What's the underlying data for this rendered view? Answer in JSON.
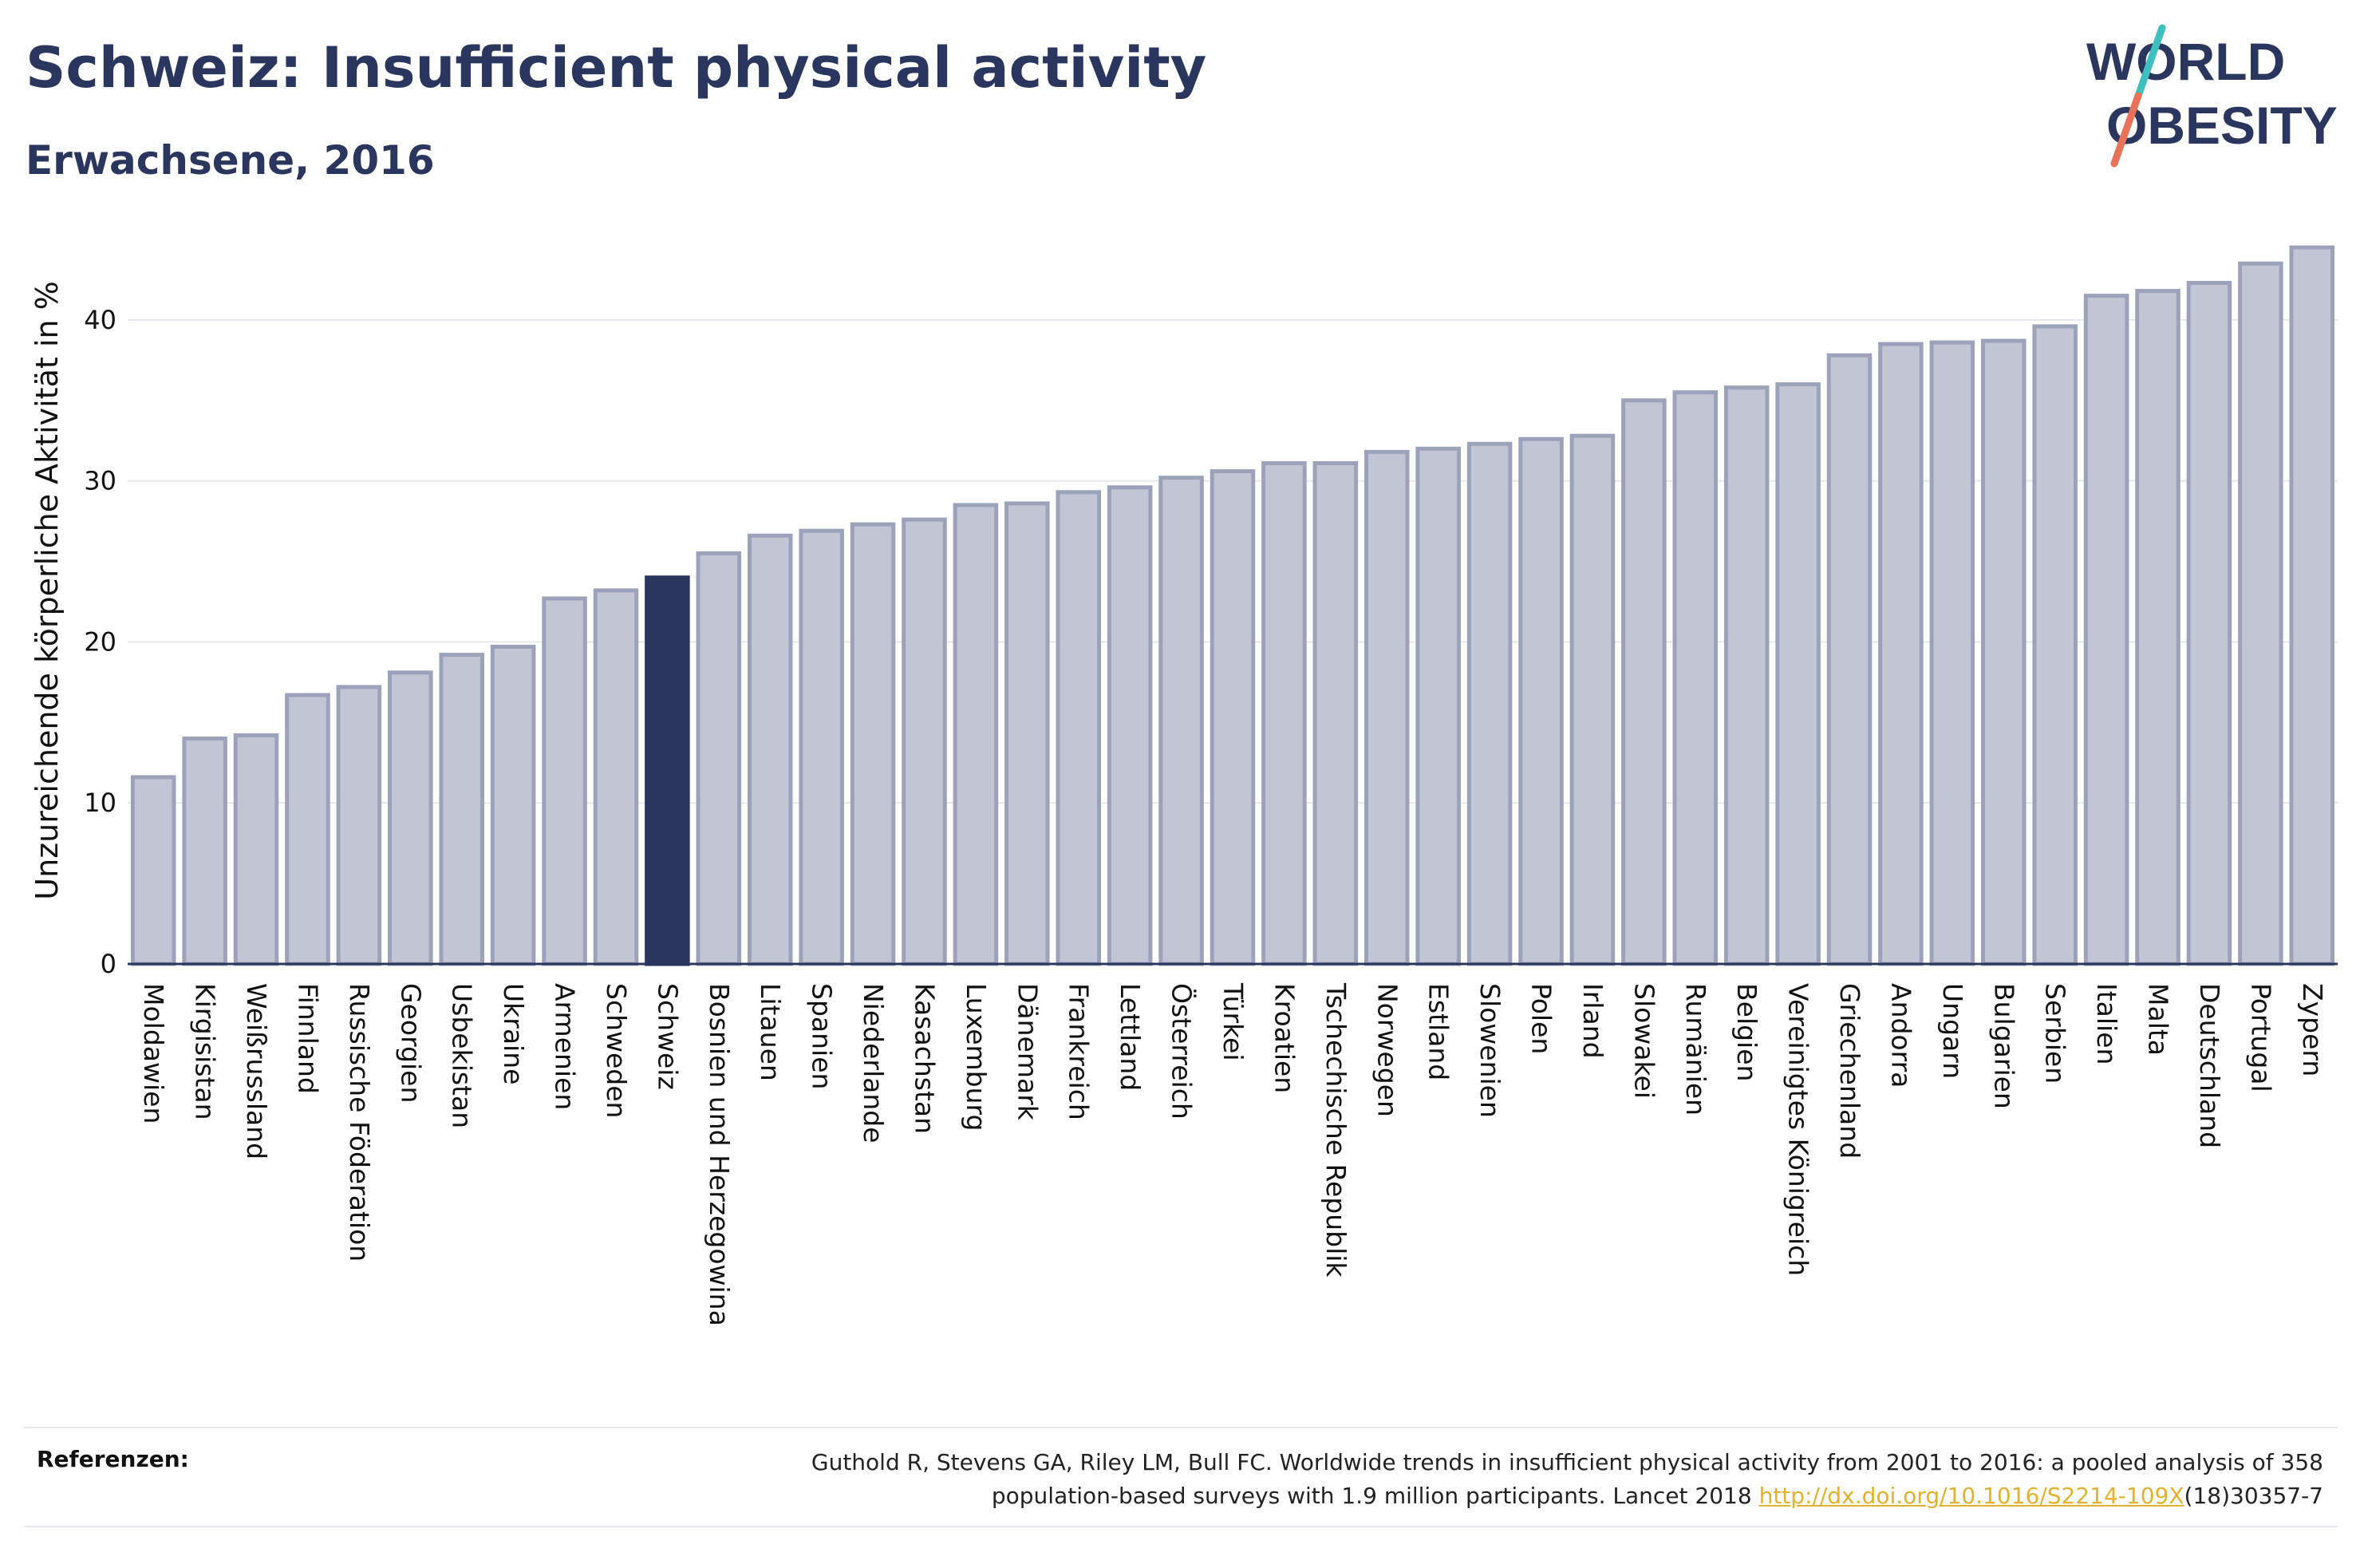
{
  "header": {
    "title": "Schweiz: Insufficient physical activity",
    "subtitle": "Erwachsene, 2016"
  },
  "logo": {
    "line1": "WORLD",
    "line2": "OBESITY",
    "slash_colors": [
      "#3fbfbf",
      "#e8735a"
    ]
  },
  "colors": {
    "bar": "#c2c6d4",
    "bar_border": "#9ca2ba",
    "highlight": "#2b365f",
    "grid": "#e6e8ee",
    "axis": "#2b365f"
  },
  "chart_data": {
    "type": "bar",
    "ylabel": "Unzureichende körperliche Aktivität in %",
    "ylim": [
      0,
      45
    ],
    "yticks": [
      0,
      10,
      20,
      30,
      40
    ],
    "grid": true,
    "highlight": "Schweiz",
    "categories": [
      "Moldawien",
      "Kirgisistan",
      "Weißrussland",
      "Finnland",
      "Russische Föderation",
      "Georgien",
      "Usbekistan",
      "Ukraine",
      "Armenien",
      "Schweden",
      "Schweiz",
      "Bosnien und Herzegowina",
      "Litauen",
      "Spanien",
      "Niederlande",
      "Kasachstan",
      "Luxemburg",
      "Dänemark",
      "Frankreich",
      "Lettland",
      "Österreich",
      "Türkei",
      "Kroatien",
      "Tschechische Republik",
      "Norwegen",
      "Estland",
      "Slowenien",
      "Polen",
      "Irland",
      "Slowakei",
      "Rumänien",
      "Belgien",
      "Vereinigtes Königreich",
      "Griechenland",
      "Andorra",
      "Ungarn",
      "Bulgarien",
      "Serbien",
      "Italien",
      "Malta",
      "Deutschland",
      "Portugal",
      "Zypern"
    ],
    "values": [
      11.6,
      14.0,
      14.2,
      16.7,
      17.2,
      18.1,
      19.2,
      19.7,
      22.7,
      23.2,
      24.0,
      25.5,
      26.6,
      26.9,
      27.3,
      27.6,
      28.5,
      28.6,
      29.3,
      29.6,
      30.2,
      30.6,
      31.1,
      31.1,
      31.8,
      32.0,
      32.3,
      32.6,
      32.8,
      35.0,
      35.5,
      35.8,
      36.0,
      37.8,
      38.5,
      38.6,
      38.7,
      39.6,
      41.5,
      41.8,
      42.3,
      43.5,
      44.5
    ]
  },
  "references": {
    "label": "Referenzen:",
    "line1": "Guthold R, Stevens GA, Riley LM, Bull FC. Worldwide trends in insufficient physical activity from 2001 to 2016: a pooled analysis of 358",
    "line2_before": "population-based surveys with 1.9 million participants. Lancet 2018 ",
    "link": "http://dx.doi.org/10.1016/S2214-109X",
    "line2_after": "(18)30357-7"
  }
}
